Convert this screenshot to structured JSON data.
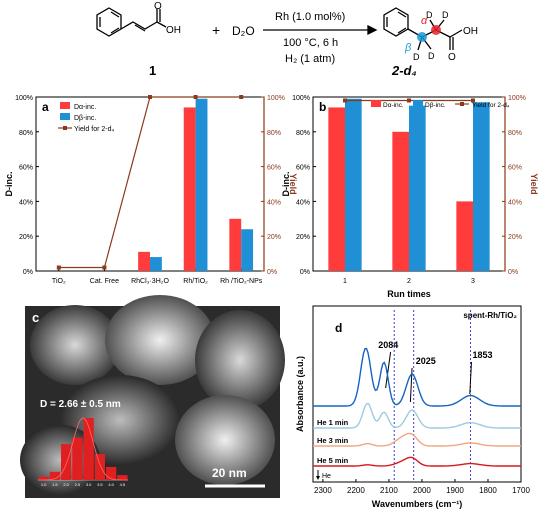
{
  "scheme": {
    "reactant_label": "1",
    "plus": "+",
    "reagent": "D₂O",
    "catalyst": "Rh (1.0 mol%)",
    "conditions": "100 °C, 6 h",
    "atmosphere": "H₂ (1 atm)",
    "product_label": "2-d₄",
    "alpha": "α",
    "beta": "β",
    "d_atom": "D",
    "oh_group": "OH",
    "oxygen": "O",
    "colors": {
      "alpha": "#e8202a",
      "beta": "#1a9ad6"
    }
  },
  "panels": {
    "a": "a",
    "b": "b",
    "c": "c",
    "d": "d"
  },
  "chart_data": [
    {
      "panel": "a",
      "type": "bar",
      "categories": [
        "TiO₂",
        "Cat. Free",
        "RhCl₃·3H₂O",
        "Rh/TiO₂",
        "Rh /TiO₂-NPs"
      ],
      "series": [
        {
          "name": "Dα-inc.",
          "values": [
            0,
            0,
            11,
            94,
            30
          ],
          "color": "#ff3b3b"
        },
        {
          "name": "Dβ-inc.",
          "values": [
            0,
            0,
            8,
            99,
            24
          ],
          "color": "#1f8fd6"
        }
      ],
      "line_series": {
        "name": "Yield for 2-d₄",
        "values": [
          2,
          2,
          100,
          100,
          100
        ],
        "color": "#8b3a1a"
      },
      "ylabel": "D-inc.",
      "y2label": "Yield",
      "ylim": [
        0,
        100
      ],
      "y2lim": [
        0,
        100
      ],
      "yticks": [
        "0%",
        "20%",
        "40%",
        "60%",
        "80%",
        "100%"
      ],
      "y2ticks": [
        "0%",
        "20%",
        "40%",
        "60%",
        "80%",
        "100%"
      ],
      "legend": "top-left"
    },
    {
      "panel": "b",
      "type": "bar",
      "categories": [
        "1",
        "2",
        "3"
      ],
      "series": [
        {
          "name": "Dα-inc.",
          "values": [
            94,
            80,
            40
          ],
          "color": "#ff3b3b"
        },
        {
          "name": "Dβ-inc.",
          "values": [
            99,
            95,
            97
          ],
          "color": "#1f8fd6"
        }
      ],
      "line_series": {
        "name": "Yield for 2-d₄",
        "values": [
          98,
          98,
          98
        ],
        "color": "#8b3a1a"
      },
      "xlabel": "Run times",
      "ylabel": "D-inc.",
      "y2label": "Yield",
      "ylim": [
        0,
        100
      ],
      "y2lim": [
        0,
        100
      ],
      "yticks": [
        "0%",
        "20%",
        "40%",
        "60%",
        "80%",
        "100%"
      ],
      "y2ticks": [
        "0%",
        "20%",
        "40%",
        "60%",
        "80%",
        "100%"
      ],
      "legend": "top"
    },
    {
      "panel": "c",
      "type": "bar",
      "annotation": "D = 2.66 ± 0.5 nm",
      "scale_bar": "20 nm",
      "categories": [
        "1.0",
        "1.5",
        "2.0",
        "2.5",
        "3.0",
        "3.5",
        "4.0",
        "4.5"
      ],
      "tick_labels": [
        "1.0",
        "1.5",
        "2.0",
        "2.5",
        "3.0",
        "3.5",
        "4.0",
        "4.5"
      ],
      "values": [
        2,
        5,
        22,
        26,
        38,
        16,
        8,
        3
      ],
      "color": "#e02020"
    },
    {
      "panel": "d",
      "type": "line",
      "title": "spent-Rh/TiO₂",
      "xlabel": "Wavenumbers (cm⁻¹)",
      "ylabel": "Absorbance (a.u.)",
      "xlim": [
        2330,
        1700
      ],
      "xticks": [
        "2300",
        "2200",
        "2100",
        "2000",
        "1900",
        "1800",
        "1700"
      ],
      "peaks": [
        "2084",
        "2025",
        "1853"
      ],
      "series": [
        {
          "name": "",
          "color": "#1565c0"
        },
        {
          "name": "He 1 min",
          "color": "#9ecae1"
        },
        {
          "name": "He 3 min",
          "color": "#f4a582"
        },
        {
          "name": "He 5 min",
          "color": "#d7191c"
        }
      ],
      "arrow_label": "He"
    }
  ]
}
